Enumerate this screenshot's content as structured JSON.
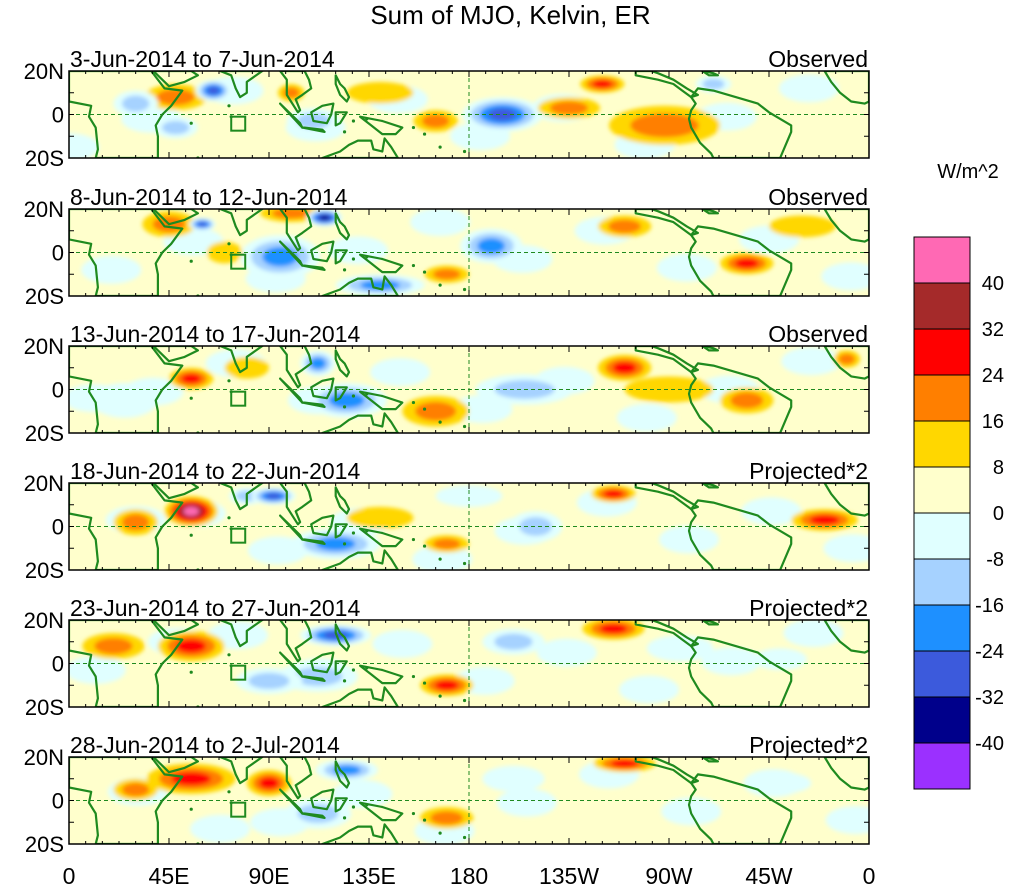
{
  "title": "Sum of MJO, Kelvin, ER",
  "units": "W/m^2",
  "panels": [
    {
      "period": "3-Jun-2014 to 7-Jun-2014",
      "type": "Observed"
    },
    {
      "period": "8-Jun-2014 to 12-Jun-2014",
      "type": "Observed"
    },
    {
      "period": "13-Jun-2014 to 17-Jun-2014",
      "type": "Observed"
    },
    {
      "period": "18-Jun-2014 to 22-Jun-2014",
      "type": "Projected*2"
    },
    {
      "period": "23-Jun-2014 to 27-Jun-2014",
      "type": "Projected*2"
    },
    {
      "period": "28-Jun-2014 to 2-Jul-2014",
      "type": "Projected*2"
    }
  ],
  "lat_labels": [
    "20N",
    "0",
    "20S"
  ],
  "lon_labels": [
    "0",
    "45E",
    "90E",
    "135E",
    "180",
    "135W",
    "90W",
    "45W",
    "0"
  ],
  "colorbar": {
    "labels": [
      "40",
      "32",
      "24",
      "16",
      "8",
      "0",
      "-8",
      "-16",
      "-24",
      "-32",
      "-40"
    ],
    "colors": [
      "#ff69b4",
      "#a52a2a",
      "#ff0000",
      "#ff7f00",
      "#ffd700",
      "#ffffcc",
      "#e0ffff",
      "#a6d2ff",
      "#1e90ff",
      "#3c5adc",
      "#00008b",
      "#9b30ff"
    ]
  }
}
